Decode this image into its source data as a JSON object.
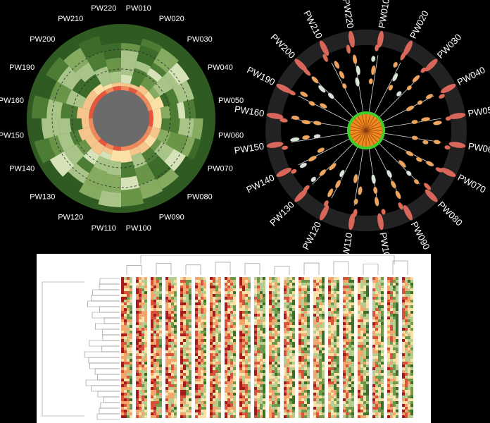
{
  "pathway_labels": [
    "PW010",
    "PW020",
    "PW030",
    "PW040",
    "PW050",
    "PW060",
    "PW070",
    "PW080",
    "PW090",
    "PW100",
    "PW110",
    "PW120",
    "PW130",
    "PW140",
    "PW150",
    "PW160",
    "PW190",
    "PW200",
    "PW210",
    "PW220"
  ]
}
